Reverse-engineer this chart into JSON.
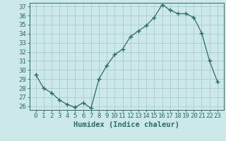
{
  "x": [
    0,
    1,
    2,
    3,
    4,
    5,
    6,
    7,
    8,
    9,
    10,
    11,
    12,
    13,
    14,
    15,
    16,
    17,
    18,
    19,
    20,
    21,
    22,
    23
  ],
  "y": [
    29.5,
    28.0,
    27.5,
    26.7,
    26.2,
    25.9,
    26.4,
    25.8,
    29.0,
    30.5,
    31.7,
    32.3,
    33.7,
    34.3,
    34.9,
    35.8,
    37.2,
    36.6,
    36.2,
    36.2,
    35.8,
    34.1,
    31.0,
    28.7
  ],
  "ylim_min": 25.6,
  "ylim_max": 37.4,
  "yticks": [
    26,
    27,
    28,
    29,
    30,
    31,
    32,
    33,
    34,
    35,
    36,
    37
  ],
  "xticks": [
    0,
    1,
    2,
    3,
    4,
    5,
    6,
    7,
    8,
    9,
    10,
    11,
    12,
    13,
    14,
    15,
    16,
    17,
    18,
    19,
    20,
    21,
    22,
    23
  ],
  "xlabel": "Humidex (Indice chaleur)",
  "line_color": "#2a6e62",
  "marker": "+",
  "marker_size": 4,
  "marker_color": "#2a6e62",
  "bg_color": "#cce8e8",
  "grid_color": "#aacccc",
  "axis_color": "#2a6e62",
  "tick_label_fontsize": 6.5,
  "xlabel_fontsize": 7.5
}
